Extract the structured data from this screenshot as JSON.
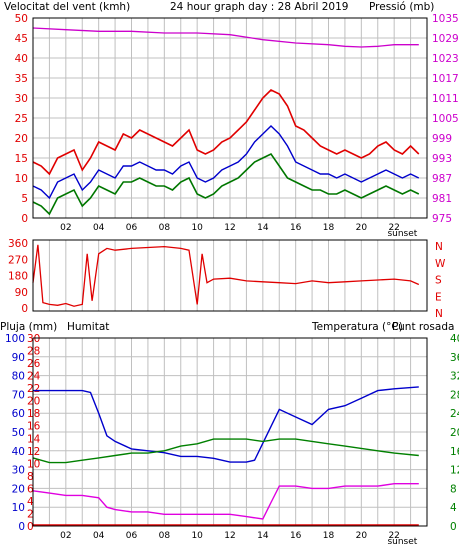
{
  "colors": {
    "wind": "#e00000",
    "gust": "#e00000",
    "avg": "#0000cc",
    "low": "#007700",
    "pressure": "#cc00cc",
    "humidity": "#0000cc",
    "temperature": "#008000",
    "dewpoint": "#e000e0",
    "rain": "#e00000",
    "grid": "#c0c0c0",
    "text": "#000000"
  },
  "chart_data": [
    {
      "type": "line",
      "title": "24 hour graph day : 28 Abril 2019",
      "ylabel_left": "Velocitat del vent (kmh)",
      "ylabel_right": "Pressió (mb)",
      "x_ticks": [
        "02",
        "04",
        "06",
        "08",
        "10",
        "12",
        "14",
        "16",
        "18",
        "20",
        "22"
      ],
      "x_annotation": "sunset",
      "left_ticks": [
        "0",
        "5",
        "10",
        "15",
        "20",
        "25",
        "30",
        "35",
        "40",
        "45",
        "50"
      ],
      "right_ticks": [
        "975",
        "981",
        "987",
        "993",
        "999",
        "1005",
        "1011",
        "1017",
        "1023",
        "1029",
        "1035"
      ],
      "ylim_left": [
        0,
        50
      ],
      "ylim_right": [
        975,
        1035
      ],
      "grid": true,
      "series": [
        {
          "role": "gust",
          "x": [
            0,
            0.5,
            1,
            1.5,
            2,
            2.5,
            3,
            3.5,
            4,
            4.5,
            5,
            5.5,
            6,
            6.5,
            7,
            7.5,
            8,
            8.5,
            9,
            9.5,
            10,
            10.5,
            11,
            11.5,
            12,
            12.5,
            13,
            13.5,
            14,
            14.5,
            15,
            15.5,
            16,
            16.5,
            17,
            17.5,
            18,
            18.5,
            19,
            19.5,
            20,
            20.5,
            21,
            21.5,
            22,
            22.5,
            23,
            23.5
          ],
          "values": [
            14,
            13,
            11,
            15,
            16,
            17,
            12,
            15,
            19,
            18,
            17,
            21,
            20,
            22,
            21,
            20,
            19,
            18,
            20,
            22,
            17,
            16,
            17,
            19,
            20,
            22,
            24,
            27,
            30,
            32,
            31,
            28,
            23,
            22,
            20,
            18,
            17,
            16,
            17,
            16,
            15,
            16,
            18,
            19,
            17,
            16,
            18,
            16
          ]
        },
        {
          "role": "average",
          "x": [
            0,
            0.5,
            1,
            1.5,
            2,
            2.5,
            3,
            3.5,
            4,
            4.5,
            5,
            5.5,
            6,
            6.5,
            7,
            7.5,
            8,
            8.5,
            9,
            9.5,
            10,
            10.5,
            11,
            11.5,
            12,
            12.5,
            13,
            13.5,
            14,
            14.5,
            15,
            15.5,
            16,
            16.5,
            17,
            17.5,
            18,
            18.5,
            19,
            19.5,
            20,
            20.5,
            21,
            21.5,
            22,
            22.5,
            23,
            23.5
          ],
          "values": [
            8,
            7,
            5,
            9,
            10,
            11,
            7,
            9,
            12,
            11,
            10,
            13,
            13,
            14,
            13,
            12,
            12,
            11,
            13,
            14,
            10,
            9,
            10,
            12,
            13,
            14,
            16,
            19,
            21,
            23,
            21,
            18,
            14,
            13,
            12,
            11,
            11,
            10,
            11,
            10,
            9,
            10,
            11,
            12,
            11,
            10,
            11,
            10
          ]
        },
        {
          "role": "low",
          "x": [
            0,
            0.5,
            1,
            1.5,
            2,
            2.5,
            3,
            3.5,
            4,
            4.5,
            5,
            5.5,
            6,
            6.5,
            7,
            7.5,
            8,
            8.5,
            9,
            9.5,
            10,
            10.5,
            11,
            11.5,
            12,
            12.5,
            13,
            13.5,
            14,
            14.5,
            15,
            15.5,
            16,
            16.5,
            17,
            17.5,
            18,
            18.5,
            19,
            19.5,
            20,
            20.5,
            21,
            21.5,
            22,
            22.5,
            23,
            23.5
          ],
          "values": [
            4,
            3,
            1,
            5,
            6,
            7,
            3,
            5,
            8,
            7,
            6,
            9,
            9,
            10,
            9,
            8,
            8,
            7,
            9,
            10,
            6,
            5,
            6,
            8,
            9,
            10,
            12,
            14,
            15,
            16,
            13,
            10,
            9,
            8,
            7,
            7,
            6,
            6,
            7,
            6,
            5,
            6,
            7,
            8,
            7,
            6,
            7,
            6
          ]
        },
        {
          "role": "pressure",
          "x": [
            0,
            2,
            4,
            6,
            8,
            10,
            12,
            14,
            16,
            18,
            19,
            20,
            21,
            22,
            23.5
          ],
          "values": [
            1032,
            1031.5,
            1031,
            1031,
            1030.5,
            1030.5,
            1030,
            1028.5,
            1027.5,
            1027,
            1026.5,
            1026.3,
            1026.5,
            1027,
            1027
          ]
        }
      ]
    },
    {
      "type": "line",
      "left_ticks": [
        "0",
        "90",
        "180",
        "270",
        "360"
      ],
      "right_ticks": [
        "N",
        "E",
        "S",
        "W",
        "N"
      ],
      "ylim_left": [
        0,
        360
      ],
      "series": [
        {
          "role": "direction",
          "x": [
            0,
            0.3,
            0.6,
            1,
            1.5,
            2,
            2.5,
            3,
            3.3,
            3.6,
            4,
            4.5,
            5,
            6,
            7,
            8,
            9,
            9.5,
            10,
            10.3,
            10.6,
            11,
            12,
            13,
            14,
            15,
            16,
            17,
            18,
            19,
            20,
            21,
            22,
            23,
            23.5
          ],
          "values": [
            140,
            350,
            30,
            20,
            15,
            25,
            10,
            20,
            300,
            40,
            300,
            330,
            320,
            330,
            335,
            340,
            330,
            320,
            20,
            300,
            140,
            160,
            165,
            150,
            145,
            140,
            135,
            150,
            140,
            145,
            150,
            155,
            160,
            150,
            130
          ]
        }
      ]
    },
    {
      "type": "line",
      "ylabel_left": "Pluja (mm)",
      "ylabel_left2": "Humitat",
      "ylabel_right": "Temperatura (°C)",
      "ylabel_right2": "Punt rosada",
      "x_ticks": [
        "02",
        "04",
        "06",
        "08",
        "10",
        "12",
        "14",
        "16",
        "18",
        "20",
        "22"
      ],
      "x_annotation": "sunset",
      "left_ticks_rain": [
        "0",
        "2",
        "4",
        "6",
        "8",
        "10",
        "12",
        "14",
        "16",
        "18",
        "20",
        "22",
        "24",
        "26",
        "28",
        "30"
      ],
      "left_ticks_humidity": [
        "0",
        "10",
        "20",
        "30",
        "40",
        "50",
        "60",
        "70",
        "80",
        "90",
        "100"
      ],
      "right_ticks": [
        "0",
        "4",
        "8",
        "12",
        "16",
        "20",
        "24",
        "28",
        "32",
        "36",
        "40"
      ],
      "ylim_humidity": [
        0,
        100
      ],
      "ylim_temperature": [
        0,
        40
      ],
      "grid": true,
      "series": [
        {
          "role": "humidity",
          "x": [
            0,
            1,
            2,
            3,
            3.5,
            4,
            4.5,
            5,
            6,
            7,
            8,
            9,
            10,
            11,
            12,
            13,
            13.5,
            14,
            14.5,
            15,
            16,
            17,
            18,
            19,
            20,
            21,
            22,
            23.5
          ],
          "values": [
            72,
            72,
            72,
            72,
            71,
            60,
            48,
            45,
            41,
            40,
            39,
            37,
            37,
            36,
            34,
            34,
            35,
            44,
            53,
            62,
            58,
            54,
            62,
            64,
            68,
            72,
            73,
            74
          ]
        },
        {
          "role": "temperature",
          "x": [
            0,
            1,
            2,
            3,
            4,
            5,
            6,
            7,
            8,
            9,
            10,
            11,
            12,
            13,
            14,
            15,
            16,
            17,
            18,
            19,
            20,
            21,
            22,
            23.5
          ],
          "values": [
            14.5,
            13.5,
            13.5,
            14,
            14.5,
            15,
            15.5,
            15.5,
            16,
            17,
            17.5,
            18.5,
            18.5,
            18.5,
            18,
            18.5,
            18.5,
            18,
            17.5,
            17,
            16.5,
            16,
            15.5,
            15
          ]
        },
        {
          "role": "dewpoint",
          "x": [
            0,
            1,
            2,
            3,
            4,
            4.5,
            5,
            6,
            7,
            8,
            9,
            10,
            11,
            12,
            13,
            14,
            14.5,
            15,
            16,
            17,
            18,
            19,
            20,
            21,
            22,
            23.5
          ],
          "values": [
            7.5,
            7,
            6.5,
            6.5,
            6,
            4,
            3.5,
            3,
            3,
            2.5,
            2.5,
            2.5,
            2.5,
            2.5,
            2,
            1.5,
            5,
            8.5,
            8.5,
            8,
            8,
            8.5,
            8.5,
            8.5,
            9,
            9
          ]
        },
        {
          "role": "rain",
          "x": [
            0,
            23.5
          ],
          "values": [
            0,
            0
          ]
        }
      ]
    }
  ]
}
